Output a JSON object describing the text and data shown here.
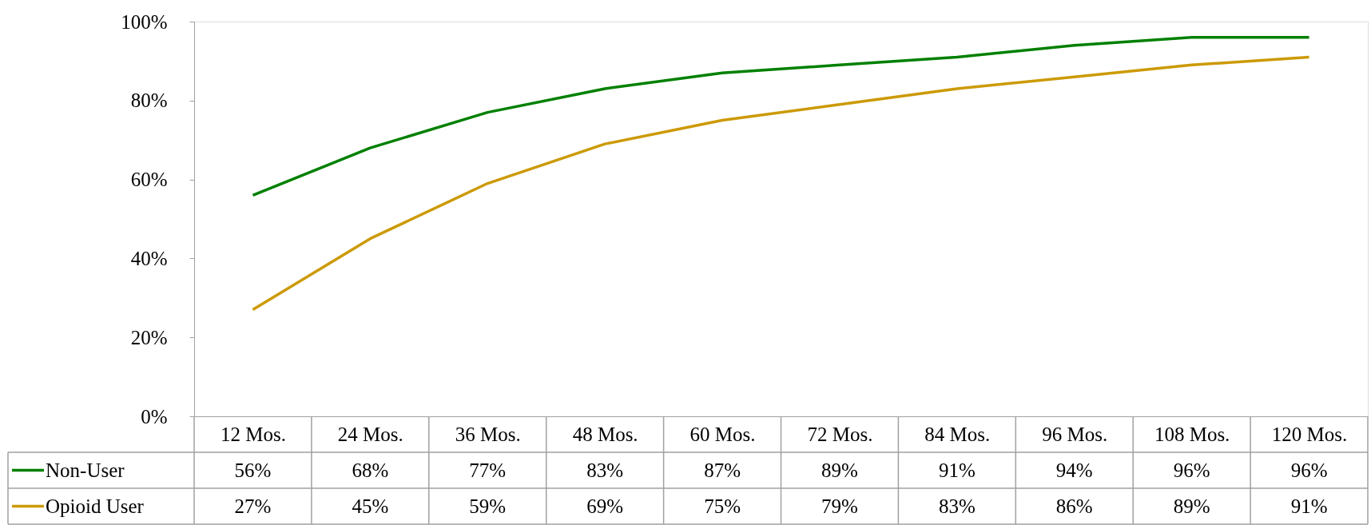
{
  "chart_data": {
    "type": "line",
    "categories": [
      "12 Mos.",
      "24 Mos.",
      "36 Mos.",
      "48 Mos.",
      "60 Mos.",
      "72 Mos.",
      "84 Mos.",
      "96 Mos.",
      "108 Mos.",
      "120 Mos."
    ],
    "series": [
      {
        "name": "Non-User",
        "color": "#008000",
        "values": [
          56,
          68,
          77,
          83,
          87,
          89,
          91,
          94,
          96,
          96
        ],
        "value_labels": [
          "56%",
          "68%",
          "77%",
          "83%",
          "87%",
          "89%",
          "91%",
          "94%",
          "96%",
          "96%"
        ]
      },
      {
        "name": "Opioid User",
        "color": "#cc9a06",
        "values": [
          27,
          45,
          59,
          69,
          75,
          79,
          83,
          86,
          89,
          91
        ],
        "value_labels": [
          "27%",
          "45%",
          "59%",
          "69%",
          "75%",
          "79%",
          "83%",
          "86%",
          "89%",
          "91%"
        ]
      }
    ],
    "ylim": [
      0,
      100
    ],
    "yticks": [
      {
        "value": 0,
        "label": "0%"
      },
      {
        "value": 20,
        "label": "20%"
      },
      {
        "value": 40,
        "label": "40%"
      },
      {
        "value": 60,
        "label": "60%"
      },
      {
        "value": 80,
        "label": "80%"
      },
      {
        "value": 100,
        "label": "100%"
      }
    ],
    "grid": false,
    "legend": "bottom left",
    "marker": "none",
    "line_style": "solid"
  }
}
